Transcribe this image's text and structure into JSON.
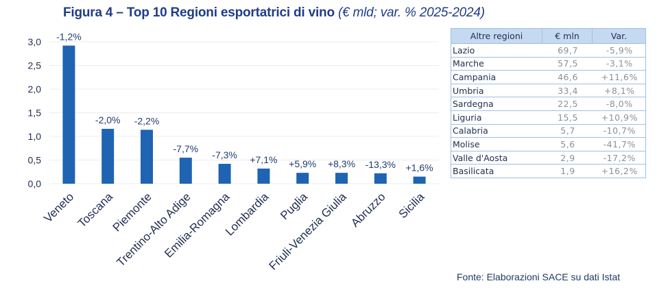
{
  "title": {
    "main": "Figura 4 – Top 10 Regioni esportatrici di vino",
    "sub": "(€ mld; var. % 2025-2024)"
  },
  "colors": {
    "bar": "#1f63b3",
    "title": "#1f3c88",
    "grid": "#ececf0",
    "table_header": "#c5daf0",
    "table_border": "#9cc0e3"
  },
  "chart_data": {
    "type": "bar",
    "title": "Figura 4 – Top 10 Regioni esportatrici di vino (€ mld; var. % 2025-2024)",
    "xlabel": "",
    "ylabel": "",
    "ylim": [
      0,
      3.0
    ],
    "yticks": [
      "0,0",
      "0,5",
      "1,0",
      "1,5",
      "2,0",
      "2,5",
      "3,0"
    ],
    "ytick_values": [
      0,
      0.5,
      1.0,
      1.5,
      2.0,
      2.5,
      3.0
    ],
    "grid": true,
    "categories": [
      "Veneto",
      "Toscana",
      "Piemonte",
      "Trentino-Alto Adige",
      "Emilia-Romagna",
      "Lombardia",
      "Puglia",
      "Friuli-Venezia Giulia",
      "Abruzzo",
      "Sicilia"
    ],
    "values": [
      2.92,
      1.16,
      1.14,
      0.55,
      0.42,
      0.32,
      0.23,
      0.23,
      0.22,
      0.15
    ],
    "data_labels": [
      "-1,2%",
      "-2,0%",
      "-2,2%",
      "-7,7%",
      "-7,3%",
      "+7,1%",
      "+5,9%",
      "+8,3%",
      "-13,3%",
      "+1,6%"
    ]
  },
  "table": {
    "headers": [
      "Altre regioni",
      "€ mln",
      "Var."
    ],
    "rows": [
      [
        "Lazio",
        "69,7",
        "-5,9%"
      ],
      [
        "Marche",
        "57,5",
        "-3,1%"
      ],
      [
        "Campania",
        "46,6",
        "+11,6%"
      ],
      [
        "Umbria",
        "33,4",
        "+8,1%"
      ],
      [
        "Sardegna",
        "22,5",
        "-8,0%"
      ],
      [
        "Liguria",
        "15,5",
        "+10,9%"
      ],
      [
        "Calabria",
        "5,7",
        "-10,7%"
      ],
      [
        "Molise",
        "5,6",
        "-41,7%"
      ],
      [
        "Valle d'Aosta",
        "2,9",
        "-17,2%"
      ],
      [
        "Basilicata",
        "1,9",
        "+16,2%"
      ]
    ]
  },
  "source": "Fonte: Elaborazioni SACE su dati Istat"
}
